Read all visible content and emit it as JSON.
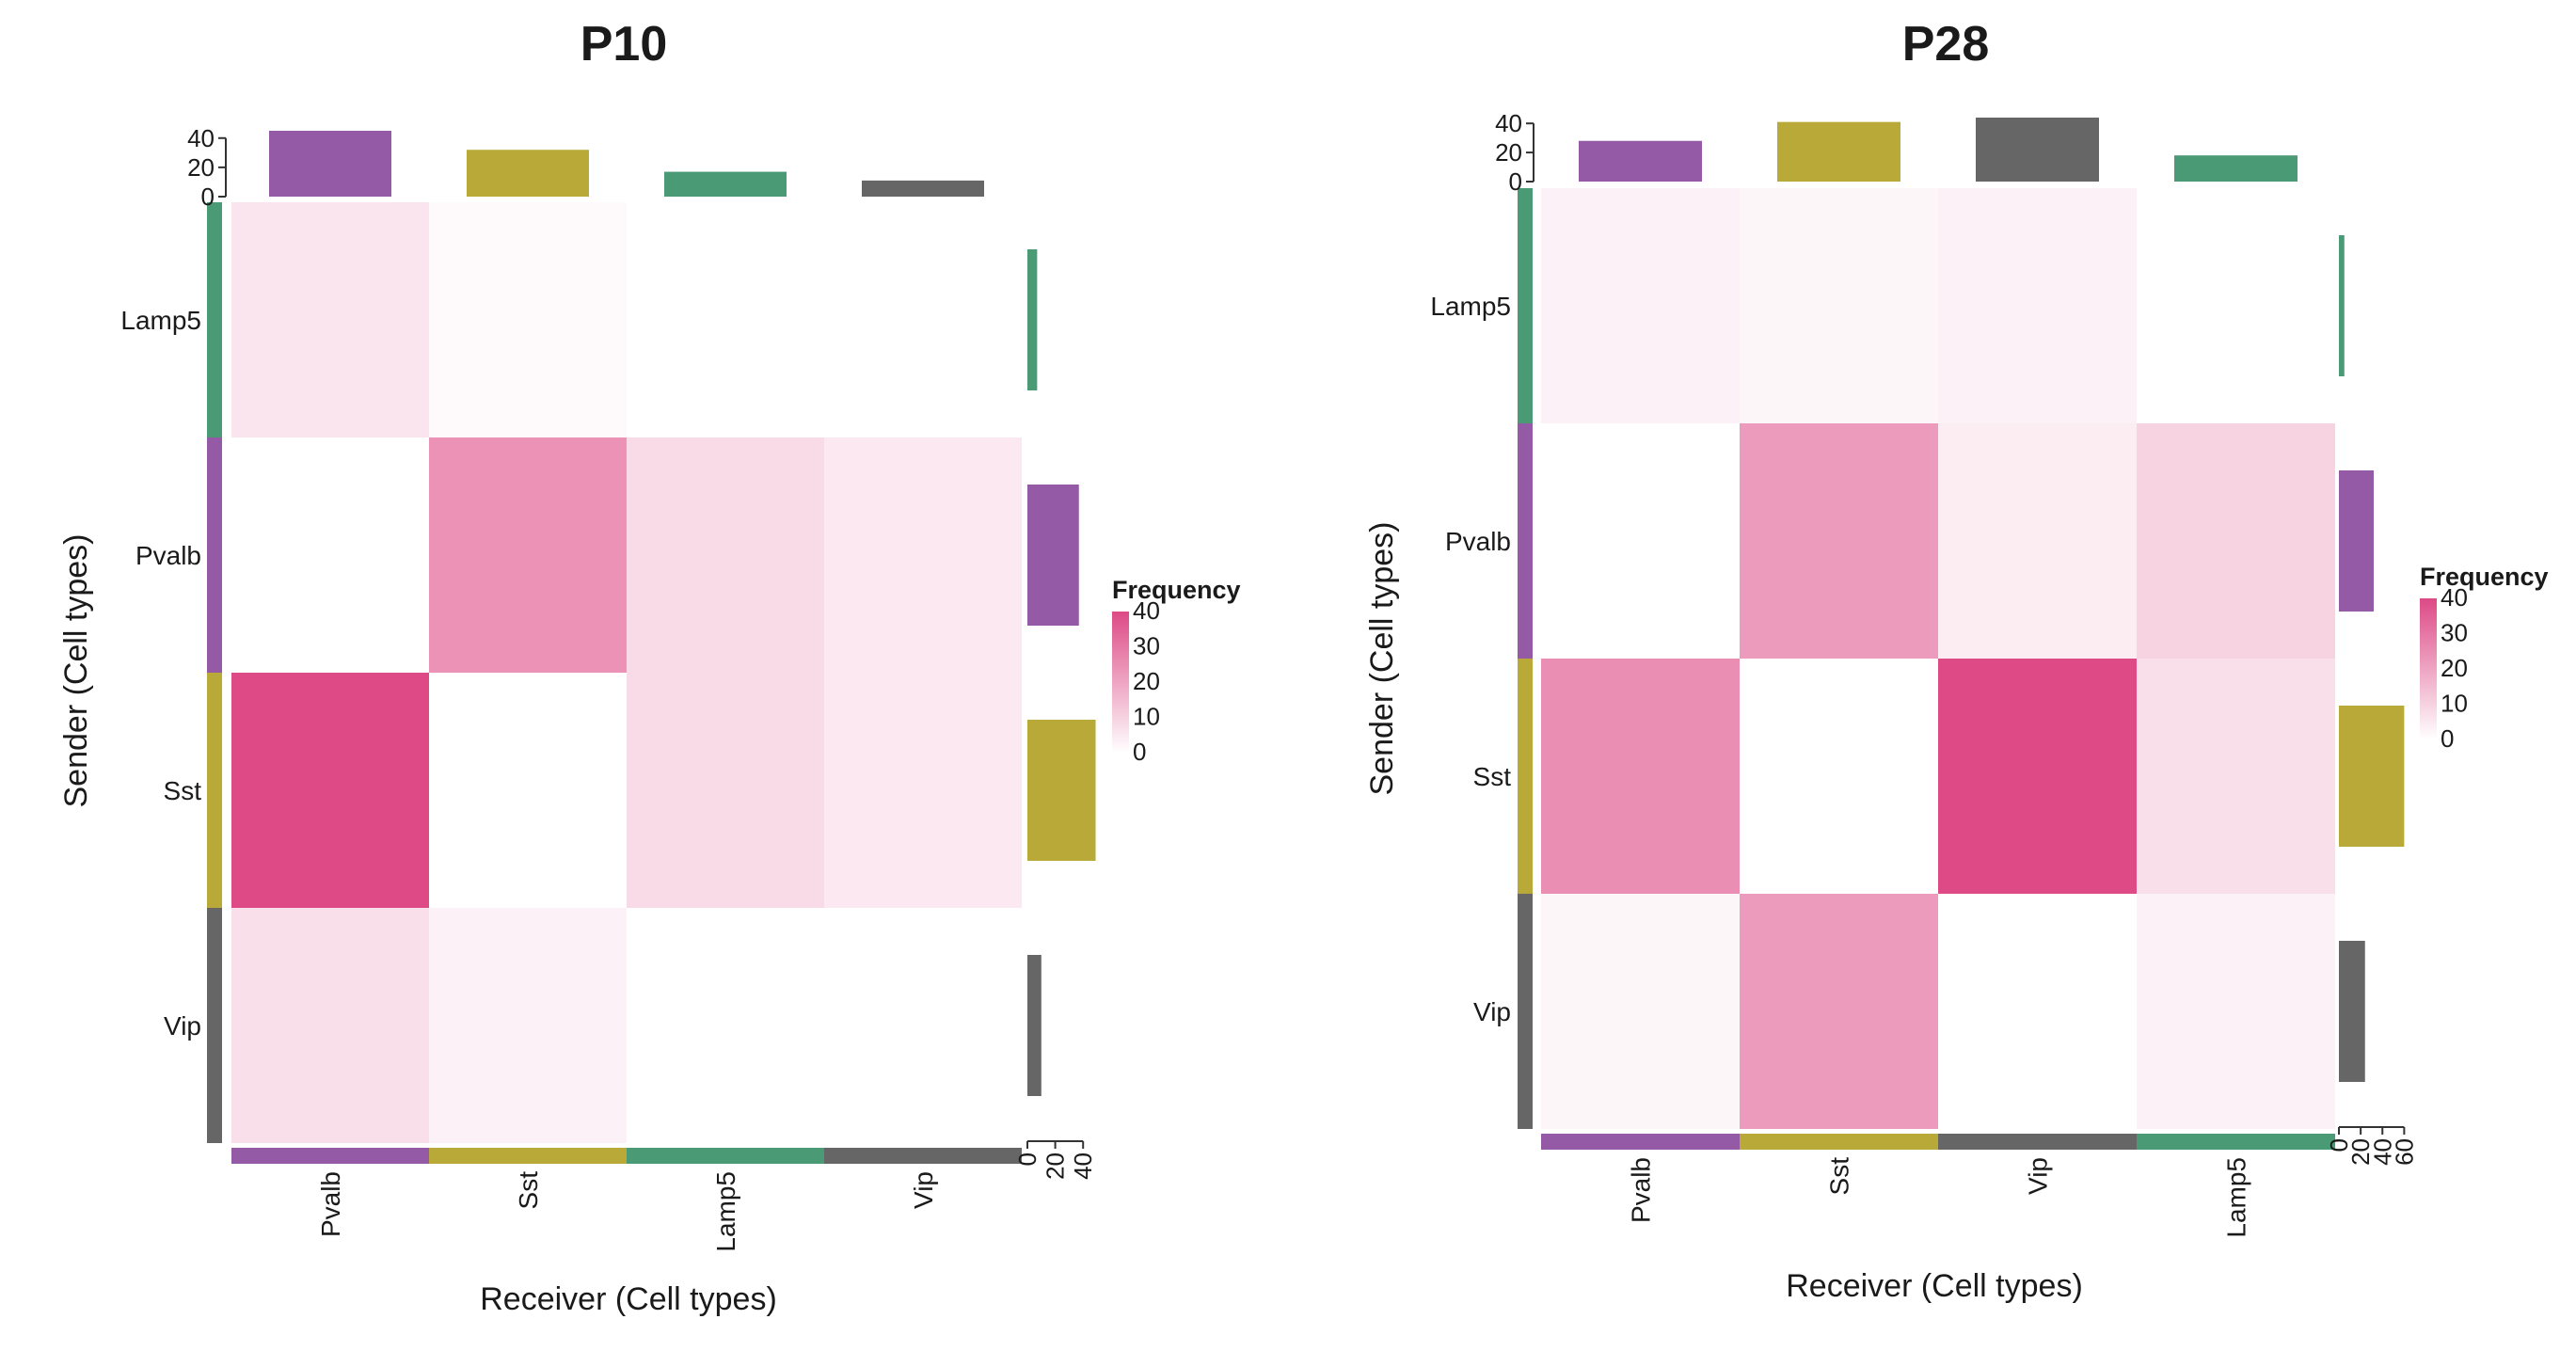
{
  "legend": {
    "title": "Frequency",
    "ticks": [
      "40",
      "30",
      "20",
      "10",
      "0"
    ],
    "max": 40
  },
  "colors": {
    "Lamp5": "#4a9a76",
    "Pvalb": "#945aa6",
    "Sst": "#b9a939",
    "Vip": "#666666",
    "heat_high": "#dd4a86",
    "heat_low": "#ffffff"
  },
  "chart_data": [
    {
      "type": "heatmap",
      "title": "P10",
      "xlabel": "Receiver (Cell types)",
      "ylabel": "Sender (Cell types)",
      "x_categories": [
        "Pvalb",
        "Sst",
        "Lamp5",
        "Vip"
      ],
      "y_categories": [
        "Lamp5",
        "Pvalb",
        "Sst",
        "Vip"
      ],
      "values": [
        [
          6,
          1,
          0,
          0
        ],
        [
          0,
          24,
          8,
          5
        ],
        [
          40,
          0,
          8,
          5
        ],
        [
          7,
          3,
          0,
          0
        ]
      ],
      "top_bars": {
        "values": [
          45,
          32,
          17,
          11
        ],
        "ylim": [
          0,
          45
        ],
        "ticks": [
          "40",
          "20",
          "0"
        ]
      },
      "right_bars": {
        "values": [
          7,
          37,
          49,
          10
        ],
        "xlim": [
          0,
          50
        ],
        "ticks": [
          "0",
          "20",
          "40"
        ]
      }
    },
    {
      "type": "heatmap",
      "title": "P28",
      "xlabel": "Receiver (Cell types)",
      "ylabel": "Sender (Cell types)",
      "x_categories": [
        "Pvalb",
        "Sst",
        "Vip",
        "Lamp5"
      ],
      "y_categories": [
        "Lamp5",
        "Pvalb",
        "Sst",
        "Vip"
      ],
      "values": [
        [
          3,
          2,
          3,
          0
        ],
        [
          0,
          22,
          4,
          10
        ],
        [
          25,
          0,
          40,
          7
        ],
        [
          2,
          22,
          0,
          3
        ]
      ],
      "top_bars": {
        "values": [
          28,
          41,
          44,
          18
        ],
        "ylim": [
          0,
          44
        ],
        "ticks": [
          "40",
          "20",
          "0"
        ]
      },
      "right_bars": {
        "values": [
          5,
          32,
          60,
          24
        ],
        "xlim": [
          0,
          64
        ],
        "ticks": [
          "0",
          "20",
          "40",
          "60"
        ]
      }
    }
  ]
}
